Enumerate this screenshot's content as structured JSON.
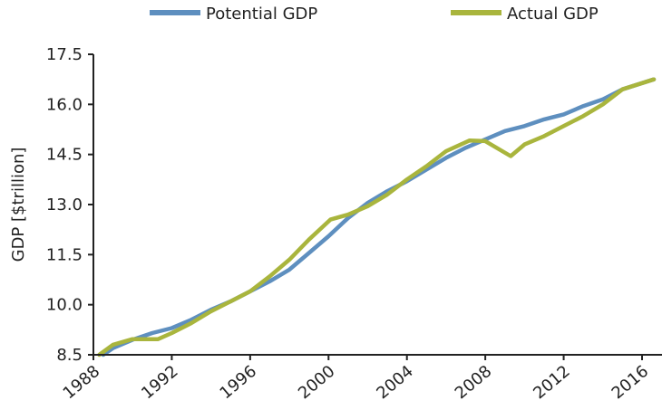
{
  "chart_data": {
    "type": "line",
    "title": "",
    "xlabel": "",
    "ylabel": "GDP [$trillion]",
    "xlim": [
      1988,
      2016.6
    ],
    "ylim": [
      8.5,
      17.5
    ],
    "xticks": [
      "1988",
      "1992",
      "1996",
      "2000",
      "2004",
      "2008",
      "2012",
      "2016"
    ],
    "yticks": [
      "8.5",
      "10.0",
      "11.5",
      "13.0",
      "14.5",
      "16.0",
      "17.5"
    ],
    "grid": false,
    "legend_position": "top-center",
    "series": [
      {
        "name": "Potential GDP",
        "color": "#5e8fbf",
        "points": [
          [
            1988.5,
            8.5
          ],
          [
            1989,
            8.7
          ],
          [
            1990,
            8.95
          ],
          [
            1991,
            9.15
          ],
          [
            1992,
            9.3
          ],
          [
            1993,
            9.55
          ],
          [
            1994,
            9.85
          ],
          [
            1995,
            10.1
          ],
          [
            1996,
            10.4
          ],
          [
            1997,
            10.7
          ],
          [
            1998,
            11.05
          ],
          [
            1999,
            11.55
          ],
          [
            2000,
            12.05
          ],
          [
            2001,
            12.6
          ],
          [
            2002,
            13.05
          ],
          [
            2003,
            13.4
          ],
          [
            2004,
            13.7
          ],
          [
            2005,
            14.05
          ],
          [
            2006,
            14.4
          ],
          [
            2007,
            14.7
          ],
          [
            2008,
            14.95
          ],
          [
            2009,
            15.2
          ],
          [
            2010,
            15.35
          ],
          [
            2011,
            15.55
          ],
          [
            2012,
            15.7
          ],
          [
            2013,
            15.95
          ],
          [
            2014,
            16.15
          ],
          [
            2015,
            16.45
          ],
          [
            2016.6,
            16.75
          ]
        ]
      },
      {
        "name": "Actual GDP",
        "color": "#a9b53d",
        "points": [
          [
            1988.3,
            8.5
          ],
          [
            1989,
            8.8
          ],
          [
            1990,
            8.97
          ],
          [
            1991.3,
            8.97
          ],
          [
            1992,
            9.15
          ],
          [
            1993,
            9.45
          ],
          [
            1994,
            9.8
          ],
          [
            1995,
            10.1
          ],
          [
            1996,
            10.4
          ],
          [
            1997,
            10.85
          ],
          [
            1998,
            11.35
          ],
          [
            1999,
            11.95
          ],
          [
            2000.1,
            12.55
          ],
          [
            2001,
            12.7
          ],
          [
            2002,
            12.95
          ],
          [
            2003,
            13.3
          ],
          [
            2004,
            13.75
          ],
          [
            2005,
            14.15
          ],
          [
            2006,
            14.6
          ],
          [
            2007.2,
            14.92
          ],
          [
            2008,
            14.9
          ],
          [
            2009.3,
            14.45
          ],
          [
            2010,
            14.8
          ],
          [
            2011,
            15.05
          ],
          [
            2012,
            15.35
          ],
          [
            2013,
            15.65
          ],
          [
            2014,
            16.0
          ],
          [
            2015,
            16.45
          ],
          [
            2016.6,
            16.75
          ]
        ]
      }
    ]
  }
}
